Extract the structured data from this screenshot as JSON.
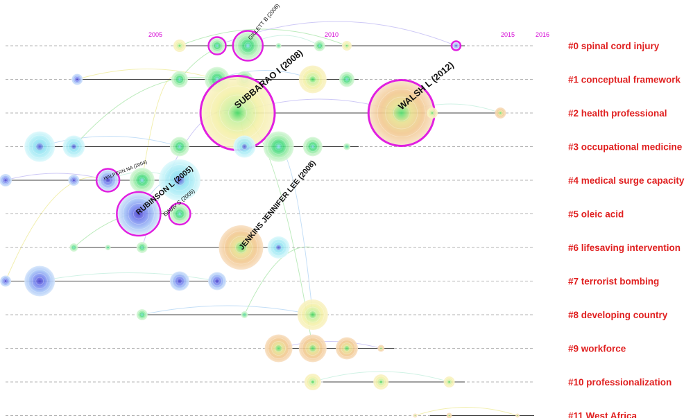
{
  "years": [
    "2005",
    "2010",
    "2015",
    "2016"
  ],
  "clusters": [
    {
      "label": "#0  spinal cord injury"
    },
    {
      "label": "#1  conceptual framework"
    },
    {
      "label": "#2  health professional"
    },
    {
      "label": "#3  occupational medicine"
    },
    {
      "label": "#4  medical surge capacity"
    },
    {
      "label": "#5  oleic acid"
    },
    {
      "label": "#6  lifesaving intervention"
    },
    {
      "label": "#7  terrorist bombing"
    },
    {
      "label": "#8  developing country"
    },
    {
      "label": "#9  workforce"
    },
    {
      "label": "#10  professionalization"
    },
    {
      "label": "#11 West Africa"
    }
  ],
  "node_labels": [
    {
      "text": "GILLETT B (2008)",
      "cluster": 0,
      "year": 2008.1
    },
    {
      "text": "SUBBARAO I (2008)",
      "cluster": 2,
      "year": 2007.8
    },
    {
      "text": "WALSH L (2012)",
      "cluster": 2,
      "year": 2012.6
    },
    {
      "text": "HALPERN NA (2004)",
      "cluster": 4,
      "year": 2003.9
    },
    {
      "text": "RUBINSON L (2005)",
      "cluster": 5,
      "year": 2004.9
    },
    {
      "text": "EINAV S (2005)",
      "cluster": 5,
      "year": 2005.8
    },
    {
      "text": "JENKINS JENNIFER LEE (2008)",
      "cluster": 6,
      "year": 2007.9
    }
  ],
  "colors": {
    "year_label": "#d400d4",
    "cluster_label": "#e02020",
    "burst_ring": "#e020e0",
    "lane_line": "#404040",
    "dashed_lane": "#9a9a9a"
  }
}
